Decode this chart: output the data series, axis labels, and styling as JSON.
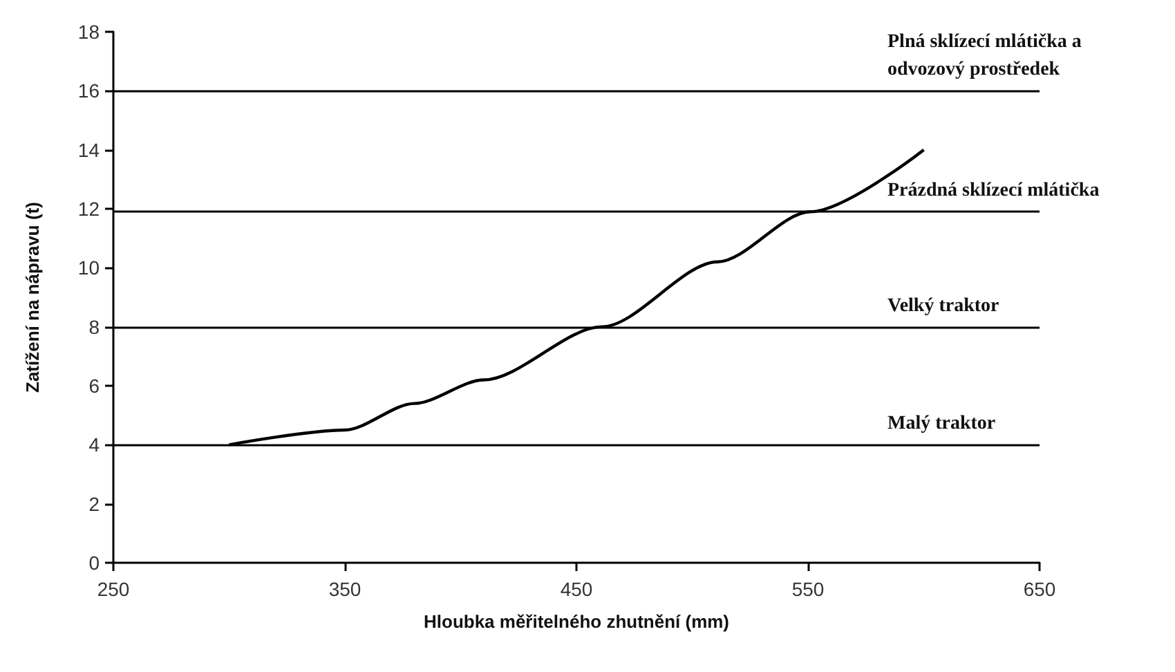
{
  "chart_data": {
    "type": "line",
    "xlabel": "Hloubka měřitelného zhutnění (mm)",
    "ylabel": "Zatížení na nápravu (t)",
    "x": [
      300,
      350,
      380,
      410,
      461,
      511,
      551,
      600
    ],
    "series": [
      {
        "color": "#000000",
        "values": [
          4,
          4.5,
          5.4,
          6.2,
          8,
          10.2,
          11.9,
          14
        ]
      }
    ],
    "xlim": [
      250,
      650
    ],
    "xticks": [
      250,
      350,
      450,
      550,
      650
    ],
    "ylim": [
      0,
      18
    ],
    "yticks": [
      0,
      2,
      4,
      6,
      8,
      10,
      12,
      14,
      16,
      18
    ],
    "grid": false,
    "marker": "none",
    "line_style": "solid",
    "ref_lines": [
      {
        "axis": "y",
        "value": 16,
        "label": "Plná sklízecí mlátička a odvozový prostředek",
        "color": "#000000"
      },
      {
        "axis": "y",
        "value": 11.9,
        "label": "Prázdná sklízecí mlátička",
        "color": "#000000"
      },
      {
        "axis": "y",
        "value": 8,
        "label": "Velký traktor",
        "color": "#000000"
      },
      {
        "axis": "y",
        "value": 4,
        "label": "Malý traktor",
        "color": "#000000"
      }
    ]
  }
}
